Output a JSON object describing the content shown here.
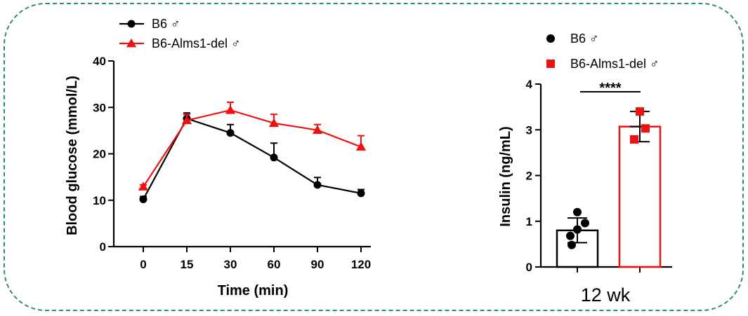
{
  "chart_data": [
    {
      "type": "line",
      "title": "",
      "xlabel": "Time (min)",
      "ylabel": "Blood glucose (mmol/L)",
      "x": [
        "0",
        "15",
        "30",
        "60",
        "90",
        "120"
      ],
      "ylim": [
        0,
        40
      ],
      "yticks": [
        "0",
        "10",
        "20",
        "30",
        "40"
      ],
      "series": [
        {
          "name": "B6 ♂",
          "color": "#000000",
          "marker": "circle",
          "values": [
            10.2,
            27.6,
            24.5,
            19.2,
            13.3,
            11.5
          ],
          "errors": [
            0.6,
            1.2,
            1.8,
            3.1,
            1.6,
            0.8
          ]
        },
        {
          "name": "B6-Alms1-del ♂",
          "color": "#ee1111",
          "marker": "triangle",
          "values": [
            12.9,
            27.2,
            29.4,
            26.6,
            25.1,
            21.5
          ],
          "errors": [
            0.4,
            1.3,
            1.7,
            1.9,
            1.2,
            2.4
          ]
        }
      ],
      "grid": false,
      "legend": "top-left"
    },
    {
      "type": "bar",
      "title": "",
      "xlabel": "12 wk",
      "ylabel": "Insulin (ng/mL)",
      "ylim": [
        0,
        4
      ],
      "yticks": [
        "0",
        "1",
        "2",
        "3",
        "4"
      ],
      "significance": "****",
      "series": [
        {
          "name": "B6 ♂",
          "color": "#000000",
          "marker": "circle",
          "value": 0.8,
          "error": 0.27,
          "points": [
            1.2,
            0.96,
            0.82,
            0.68,
            0.48
          ]
        },
        {
          "name": "B6-Alms1-del ♂",
          "color": "#ee1111",
          "marker": "square",
          "value": 3.07,
          "error": 0.33,
          "points": [
            3.4,
            3.03,
            2.79
          ]
        }
      ],
      "grid": false,
      "legend": "top"
    }
  ]
}
